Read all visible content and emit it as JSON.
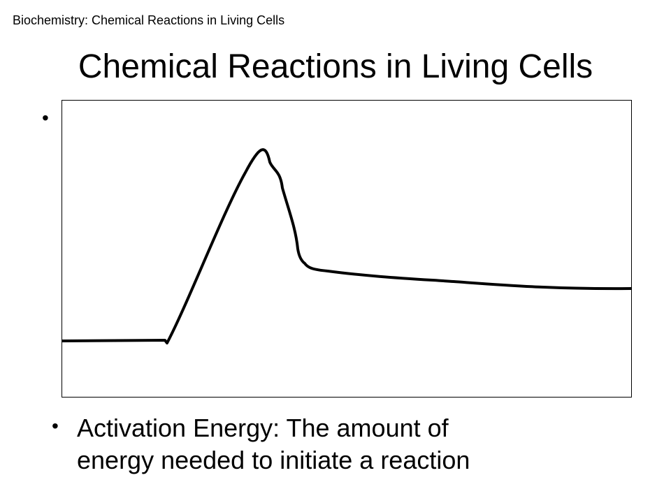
{
  "header": {
    "text": "Biochemistry: Chemical Reactions in Living Cells"
  },
  "slide": {
    "title": "Chemical Reactions in Living Cells",
    "bullet_symbol": "•",
    "definition_line_1": "Activation Energy: The amount of",
    "definition_line_2": "energy needed to initiate a reaction"
  },
  "graph": {
    "curve": {
      "color": "#000000",
      "shape": "energy-profile-curve"
    },
    "frame_color": "#000000"
  }
}
